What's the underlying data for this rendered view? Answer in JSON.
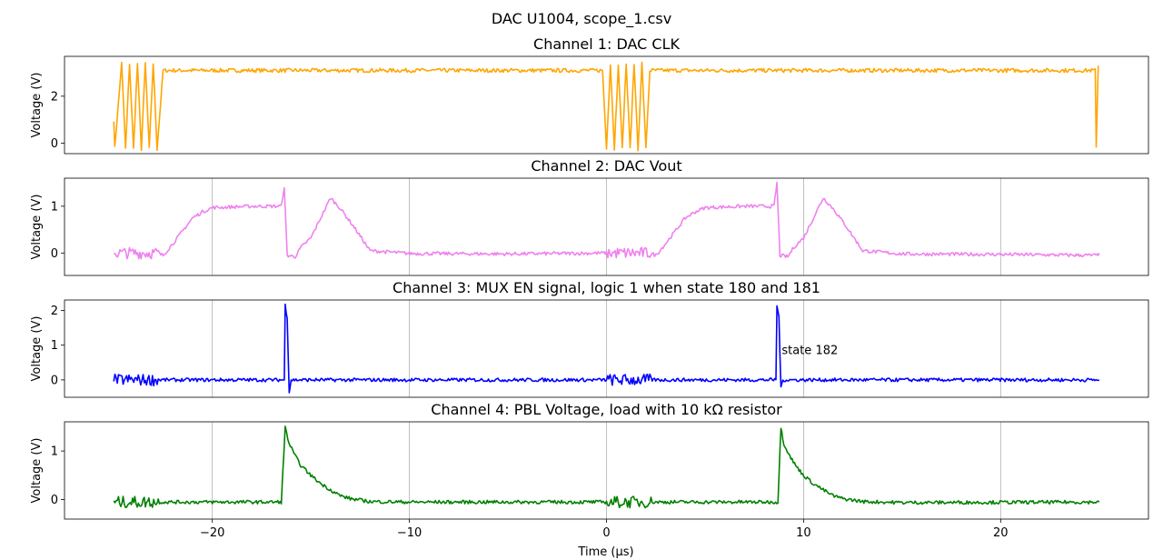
{
  "suptitle": "DAC U1004, scope_1.csv",
  "xlabel": "Time (μs)",
  "chart_data": [
    {
      "type": "line",
      "title": "Channel 1: DAC CLK",
      "ylabel": "Voltage (V)",
      "color": "#ffa500",
      "xlim": [
        -27.5,
        27.5
      ],
      "ylim": [
        -0.45,
        3.7
      ],
      "yticks": [
        0,
        2
      ],
      "ytick_labels": [
        "0",
        "2"
      ],
      "grid_x": [],
      "x": [
        -25.0,
        -24.95,
        -24.6,
        -24.4,
        -24.2,
        -24.0,
        -23.8,
        -23.6,
        -23.4,
        -23.2,
        -23.0,
        -22.8,
        -22.5,
        -20.0,
        -17.5,
        -15.0,
        -12.5,
        -10.0,
        -7.5,
        -5.0,
        -2.5,
        -0.2,
        0.0,
        0.2,
        0.4,
        0.6,
        0.8,
        1.0,
        1.2,
        1.4,
        1.6,
        1.8,
        2.0,
        2.2,
        2.5,
        5.0,
        7.5,
        10.0,
        12.5,
        15.0,
        17.5,
        20.0,
        22.5,
        24.8,
        24.85,
        24.95
      ],
      "y": [
        1.0,
        -0.2,
        3.4,
        -0.25,
        3.4,
        -0.25,
        3.4,
        -0.25,
        3.4,
        -0.25,
        3.4,
        -0.25,
        3.1,
        3.1,
        3.1,
        3.1,
        3.1,
        3.1,
        3.1,
        3.1,
        3.1,
        3.1,
        -0.25,
        3.4,
        -0.25,
        3.4,
        -0.25,
        3.4,
        -0.25,
        3.4,
        -0.25,
        3.4,
        -0.25,
        3.1,
        3.1,
        3.1,
        3.1,
        3.1,
        3.1,
        3.1,
        3.1,
        3.1,
        3.1,
        3.1,
        -0.2,
        3.3
      ]
    },
    {
      "type": "line",
      "title": "Channel 2: DAC Vout",
      "ylabel": "Voltage (V)",
      "color": "#ee82ee",
      "xlim": [
        -27.5,
        27.5
      ],
      "ylim": [
        -0.48,
        1.6
      ],
      "yticks": [
        0,
        1
      ],
      "ytick_labels": [
        "0",
        "1"
      ],
      "grid_x": [
        -20,
        -10,
        0,
        10,
        20
      ],
      "x": [
        -25.0,
        -24.5,
        -23.5,
        -22.8,
        -22.5,
        -22.0,
        -21.0,
        -20.5,
        -20.0,
        -18.0,
        -16.5,
        -16.35,
        -16.2,
        -15.8,
        -15.5,
        -15.0,
        -14.5,
        -14.0,
        -13.5,
        -12.8,
        -12.0,
        -10.0,
        -5.0,
        0.0,
        0.5,
        1.5,
        2.2,
        2.5,
        3.0,
        4.0,
        4.5,
        5.0,
        7.0,
        8.5,
        8.65,
        8.8,
        9.2,
        9.5,
        10.0,
        10.5,
        11.0,
        11.5,
        12.2,
        13.0,
        15.0,
        20.0,
        24.9,
        25.0
      ],
      "y": [
        0.0,
        0.0,
        0.0,
        0.0,
        -0.05,
        0.2,
        0.75,
        0.88,
        0.97,
        1.0,
        1.0,
        1.42,
        -0.05,
        -0.08,
        0.12,
        0.32,
        0.75,
        1.18,
        0.95,
        0.55,
        0.05,
        -0.01,
        -0.02,
        0.0,
        0.0,
        0.0,
        0.0,
        -0.05,
        0.2,
        0.75,
        0.88,
        0.97,
        1.0,
        1.0,
        1.5,
        -0.05,
        -0.08,
        0.12,
        0.32,
        0.75,
        1.18,
        0.95,
        0.55,
        0.05,
        -0.02,
        -0.03,
        -0.05,
        0.0
      ]
    },
    {
      "type": "line",
      "title": "Channel 3: MUX EN signal, logic 1 when state 180 and 181",
      "ylabel": "Voltage (V)",
      "color": "#0000ff",
      "xlim": [
        -27.5,
        27.5
      ],
      "ylim": [
        -0.5,
        2.3
      ],
      "yticks": [
        0,
        1,
        2
      ],
      "ytick_labels": [
        "0",
        "1",
        "2"
      ],
      "grid_x": [
        -20,
        -10,
        0,
        10,
        20
      ],
      "annotation": {
        "text": "state 182",
        "x": 8.8,
        "y": 0.85
      },
      "x": [
        -25.0,
        -22.8,
        -20.0,
        -16.35,
        -16.3,
        -16.2,
        -16.1,
        -16.0,
        -10.0,
        0.0,
        2.2,
        5.0,
        8.6,
        8.65,
        8.75,
        8.85,
        8.95,
        15.0,
        24.9,
        25.0
      ],
      "y": [
        0.0,
        0.0,
        0.0,
        0.0,
        2.15,
        1.8,
        -0.35,
        0.0,
        0.0,
        0.0,
        0.0,
        0.0,
        0.0,
        2.15,
        1.8,
        -0.25,
        0.0,
        0.0,
        0.0,
        0.0
      ]
    },
    {
      "type": "line",
      "title": "Channel 4: PBL Voltage, load with 10 kΩ resistor",
      "ylabel": "Voltage (V)",
      "color": "#008000",
      "xlim": [
        -27.5,
        27.5
      ],
      "ylim": [
        -0.4,
        1.6
      ],
      "yticks": [
        0,
        1
      ],
      "ytick_labels": [
        "0",
        "1"
      ],
      "grid_x": [
        -20,
        -10,
        0,
        10,
        20
      ],
      "xticks": [
        -20,
        -10,
        0,
        10,
        20
      ],
      "xtick_labels": [
        "−20",
        "−10",
        "0",
        "10",
        "20"
      ],
      "x": [
        -25.0,
        -22.8,
        -20.0,
        -16.5,
        -16.3,
        -16.1,
        -15.8,
        -15.5,
        -15.0,
        -14.5,
        -14.0,
        -13.5,
        -13.0,
        -12.0,
        -10.0,
        0.0,
        2.2,
        5.0,
        8.7,
        8.85,
        9.0,
        9.3,
        9.6,
        10.0,
        10.5,
        11.0,
        11.5,
        12.0,
        13.0,
        15.0,
        25.0
      ],
      "y": [
        -0.05,
        -0.05,
        -0.05,
        -0.05,
        1.48,
        1.15,
        0.9,
        0.7,
        0.5,
        0.33,
        0.2,
        0.08,
        0.02,
        -0.04,
        -0.05,
        -0.05,
        -0.05,
        -0.05,
        -0.05,
        1.5,
        1.15,
        0.9,
        0.7,
        0.5,
        0.33,
        0.2,
        0.08,
        0.02,
        -0.04,
        -0.06,
        -0.05
      ]
    }
  ]
}
